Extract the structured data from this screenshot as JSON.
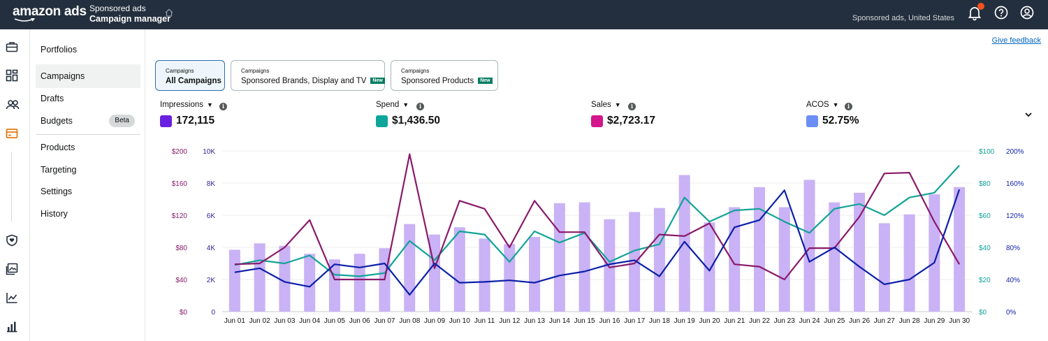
{
  "header": {
    "logo_text": "amazon ads",
    "app_line1": "Sponsored ads",
    "app_line2": "Campaign manager",
    "account": "Sponsored ads, United States"
  },
  "nav": {
    "items": [
      {
        "label": "Portfolios"
      },
      {
        "label": "Campaigns",
        "active": true
      },
      {
        "label": "Drafts"
      },
      {
        "label": "Budgets",
        "badge": "Beta"
      },
      {
        "label": "Products"
      },
      {
        "label": "Targeting"
      },
      {
        "label": "Settings"
      },
      {
        "label": "History"
      }
    ]
  },
  "feedback_link": "Give feedback",
  "tabs": [
    {
      "small": "Campaigns",
      "label": "All Campaigns",
      "selected": true
    },
    {
      "small": "Campaigns",
      "label": "Sponsored Brands, Display and TV",
      "badge": "New"
    },
    {
      "small": "Campaigns",
      "label": "Sponsored Products",
      "badge": "New"
    }
  ],
  "metrics": [
    {
      "label": "Impressions",
      "value": "172,115",
      "color": "#6b1fe0"
    },
    {
      "label": "Spend",
      "value": "$1,436.50",
      "color": "#0ea59b"
    },
    {
      "label": "Sales",
      "value": "$2,723.17",
      "color": "#d4168c"
    },
    {
      "label": "ACOS",
      "value": "52.75%",
      "color": "#6b8ef5"
    }
  ],
  "colors": {
    "topbar": "#232f3e",
    "bars": "#c9b2f5",
    "spend_line": "#12a398",
    "sales_line": "#8a1a6a",
    "acos_line": "#0b1fa8",
    "sales_axis": "#8a1a6a",
    "impr_axis": "#2f1f8f",
    "spend_axis": "#12a398",
    "acos_axis": "#0b1fa8"
  },
  "chart_data": {
    "type": "bar",
    "categories": [
      "Jun 01",
      "Jun 02",
      "Jun 03",
      "Jun 04",
      "Jun 05",
      "Jun 06",
      "Jun 07",
      "Jun 08",
      "Jun 09",
      "Jun 10",
      "Jun 11",
      "Jun 12",
      "Jun 13",
      "Jun 14",
      "Jun 15",
      "Jun 16",
      "Jun 17",
      "Jun 18",
      "Jun 19",
      "Jun 20",
      "Jun 21",
      "Jun 22",
      "Jun 23",
      "Jun 24",
      "Jun 25",
      "Jun 26",
      "Jun 27",
      "Jun 28",
      "Jun 29",
      "Jun 30"
    ],
    "axes": {
      "sales": {
        "ticks": [
          "$0",
          "$40",
          "$80",
          "$120",
          "$160",
          "$200"
        ],
        "range": [
          0,
          200
        ]
      },
      "impressions": {
        "ticks": [
          "0",
          "2K",
          "4K",
          "6K",
          "8K",
          "10K"
        ],
        "range": [
          0,
          10000
        ]
      },
      "spend": {
        "ticks": [
          "$0",
          "$20",
          "$40",
          "$60",
          "$80",
          "$100"
        ],
        "range": [
          0,
          100
        ]
      },
      "acos": {
        "ticks": [
          "0%",
          "40%",
          "80%",
          "120%",
          "160%",
          "200%"
        ],
        "range": [
          0,
          200
        ]
      }
    },
    "grid": true,
    "series": [
      {
        "name": "Impressions",
        "kind": "bar",
        "axis": "impressions",
        "values": [
          3850,
          4250,
          4100,
          3600,
          3250,
          3600,
          3950,
          5450,
          4800,
          5250,
          4550,
          4200,
          4650,
          6750,
          6800,
          5750,
          6200,
          6450,
          8500,
          5550,
          6500,
          7750,
          6500,
          8200,
          6800,
          7400,
          5500,
          6050,
          7300,
          7750
        ]
      },
      {
        "name": "Spend",
        "kind": "line",
        "axis": "spend",
        "values": [
          29,
          32,
          30,
          35,
          23,
          22,
          24,
          44,
          32,
          50,
          48,
          31,
          50,
          43,
          49,
          31,
          38,
          42,
          71,
          56,
          63,
          64,
          56,
          49,
          64,
          67,
          60,
          71,
          74,
          91
        ]
      },
      {
        "name": "Sales",
        "kind": "line",
        "axis": "sales",
        "values": [
          59,
          60,
          80,
          114,
          40,
          40,
          40,
          196,
          54,
          138,
          128,
          80,
          138,
          99,
          99,
          55,
          60,
          96,
          94,
          110,
          59,
          56,
          40,
          79,
          79,
          118,
          172,
          173,
          112,
          59
        ]
      },
      {
        "name": "ACOS",
        "kind": "line",
        "axis": "acos",
        "values": [
          49,
          54,
          37,
          31,
          59,
          55,
          60,
          21,
          60,
          36,
          37,
          39,
          36,
          45,
          50,
          59,
          64,
          44,
          87,
          51,
          105,
          114,
          151,
          62,
          80,
          56,
          34,
          40,
          61,
          152
        ]
      }
    ]
  }
}
